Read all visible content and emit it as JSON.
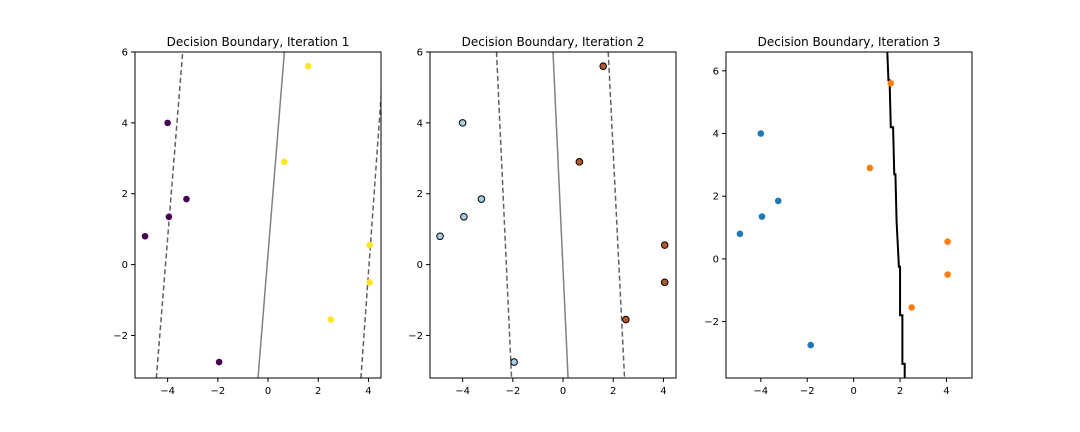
{
  "chart_data": [
    {
      "type": "scatter",
      "title": "Decision Boundary, Iteration 1",
      "xlim": [
        -5.3,
        4.5
      ],
      "ylim": [
        -3.2,
        6.0
      ],
      "xticks": [
        -4,
        -2,
        0,
        2,
        4
      ],
      "yticks": [
        -2,
        0,
        2,
        4,
        6
      ],
      "tick_labels_x": [
        "−4",
        "−2",
        "0",
        "2",
        "4"
      ],
      "tick_labels_y": [
        "−2",
        "0",
        "2",
        "4",
        "6"
      ],
      "grid": false,
      "point_edge": "none",
      "series": [
        {
          "class": 0,
          "color": "#440154",
          "x": [
            -4.0,
            -3.25,
            -3.95,
            -4.9,
            -1.95
          ],
          "y": [
            4.0,
            1.85,
            1.35,
            0.8,
            -2.75
          ]
        },
        {
          "class": 1,
          "color": "#fde725",
          "x": [
            1.6,
            0.65,
            4.05,
            4.05,
            2.5
          ],
          "y": [
            5.6,
            2.9,
            0.55,
            -0.5,
            -1.55
          ]
        }
      ],
      "lines": [
        {
          "style": "solid",
          "color": "#808080",
          "points": [
            [
              -0.4,
              -3.2
            ],
            [
              0.65,
              6.0
            ]
          ]
        },
        {
          "style": "dashed",
          "color": "#606060",
          "points": [
            [
              -4.45,
              -3.2
            ],
            [
              -3.4,
              6.0
            ]
          ]
        },
        {
          "style": "dashed",
          "color": "#606060",
          "points": [
            [
              3.7,
              -3.2
            ],
            [
              4.55,
              5.2
            ]
          ]
        }
      ]
    },
    {
      "type": "scatter",
      "title": "Decision Boundary, Iteration 2",
      "xlim": [
        -5.3,
        4.5
      ],
      "ylim": [
        -3.2,
        6.0
      ],
      "xticks": [
        -4,
        -2,
        0,
        2,
        4
      ],
      "yticks": [
        -2,
        0,
        2,
        4,
        6
      ],
      "tick_labels_x": [
        "−4",
        "−2",
        "0",
        "2",
        "4"
      ],
      "tick_labels_y": [
        "−2",
        "0",
        "2",
        "4",
        "6"
      ],
      "grid": false,
      "point_edge": "#000000",
      "series": [
        {
          "class": 0,
          "color": "#a6cee3",
          "x": [
            -4.0,
            -3.25,
            -3.95,
            -4.9,
            -1.95
          ],
          "y": [
            4.0,
            1.85,
            1.35,
            0.8,
            -2.75
          ]
        },
        {
          "class": 1,
          "color": "#b15928",
          "x": [
            1.6,
            0.65,
            4.05,
            4.05,
            2.5
          ],
          "y": [
            5.6,
            2.9,
            0.55,
            -0.5,
            -1.55
          ]
        }
      ],
      "lines": [
        {
          "style": "solid",
          "color": "#808080",
          "points": [
            [
              -0.4,
              6.0
            ],
            [
              0.2,
              -3.2
            ]
          ]
        },
        {
          "style": "dashed",
          "color": "#606060",
          "points": [
            [
              -2.65,
              6.0
            ],
            [
              -2.05,
              -3.2
            ]
          ]
        },
        {
          "style": "dashed",
          "color": "#606060",
          "points": [
            [
              1.8,
              6.0
            ],
            [
              2.45,
              -3.2
            ]
          ]
        }
      ]
    },
    {
      "type": "scatter",
      "title": "Decision Boundary, Iteration 3",
      "xlim": [
        -5.5,
        5.1
      ],
      "ylim": [
        -3.8,
        6.6
      ],
      "xticks": [
        -4,
        -2,
        0,
        2,
        4
      ],
      "yticks": [
        -2,
        0,
        2,
        4,
        6
      ],
      "tick_labels_x": [
        "−4",
        "−2",
        "0",
        "2",
        "4"
      ],
      "tick_labels_y": [
        "−2",
        "0",
        "2",
        "4",
        "6"
      ],
      "grid": false,
      "point_edge": "none",
      "series": [
        {
          "class": 0,
          "color": "#1f77b4",
          "x": [
            -4.0,
            -3.25,
            -3.95,
            -4.9,
            -1.85
          ],
          "y": [
            4.0,
            1.85,
            1.35,
            0.8,
            -2.75
          ]
        },
        {
          "class": 1,
          "color": "#ff7f0e",
          "x": [
            1.6,
            0.7,
            4.05,
            4.05,
            2.5
          ],
          "y": [
            5.6,
            2.9,
            0.55,
            -0.5,
            -1.55
          ]
        }
      ],
      "lines": [
        {
          "style": "solid",
          "color": "#000000",
          "width": 2,
          "points": [
            [
              1.45,
              6.6
            ],
            [
              1.5,
              5.7
            ],
            [
              1.55,
              5.7
            ],
            [
              1.6,
              4.2
            ],
            [
              1.7,
              4.2
            ],
            [
              1.75,
              2.7
            ],
            [
              1.8,
              2.7
            ],
            [
              1.85,
              1.2
            ],
            [
              1.85,
              1.2
            ],
            [
              1.95,
              -0.25
            ],
            [
              2.0,
              -0.25
            ],
            [
              2.0,
              -1.8
            ],
            [
              2.1,
              -1.8
            ],
            [
              2.1,
              -3.35
            ],
            [
              2.2,
              -3.35
            ],
            [
              2.2,
              -3.8
            ]
          ]
        }
      ]
    }
  ]
}
